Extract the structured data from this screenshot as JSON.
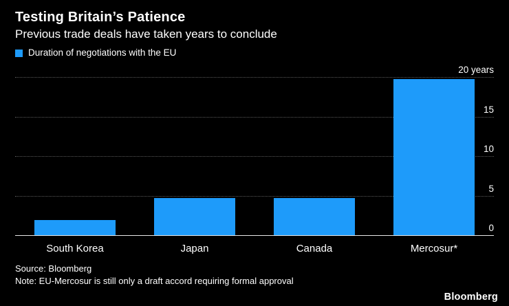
{
  "header": {
    "title": "Testing Britain’s Patience",
    "subtitle": "Previous trade deals have taken years to conclude"
  },
  "legend": {
    "label": "Duration of negotiations with the EU"
  },
  "colors": {
    "bar": "#1e9bfa",
    "background": "#000000",
    "text": "#ffffff",
    "gridline": "#5a5a5a"
  },
  "chart_data": {
    "type": "bar",
    "title": "Testing Britain’s Patience",
    "subtitle": "Previous trade deals have taken years to conclude",
    "series_name": "Duration of negotiations with the EU",
    "categories": [
      "South Korea",
      "Japan",
      "Canada",
      "Mercosur*"
    ],
    "values": [
      2,
      4.8,
      4.8,
      19.8
    ],
    "unit": "years",
    "ylim": [
      0,
      20
    ],
    "yticks": [
      {
        "value": 0,
        "label": "0"
      },
      {
        "value": 5,
        "label": "5"
      },
      {
        "value": 10,
        "label": "10"
      },
      {
        "value": 15,
        "label": "15"
      },
      {
        "value": 20,
        "label": "20 years"
      }
    ],
    "grid": "horizontal-dotted",
    "legend_position": "top-left",
    "ytick_position": "right"
  },
  "footer": {
    "source": "Source: Bloomberg",
    "note": "Note: EU-Mercosur is still only a draft accord requiring formal approval"
  },
  "branding": {
    "logo": "Bloomberg"
  }
}
